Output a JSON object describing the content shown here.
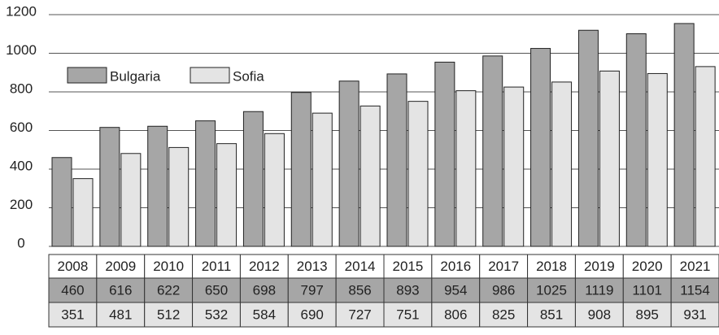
{
  "chart_data": {
    "type": "bar",
    "categories": [
      "2008",
      "2009",
      "2010",
      "2011",
      "2012",
      "2013",
      "2014",
      "2015",
      "2016",
      "2017",
      "2018",
      "2019",
      "2020",
      "2021"
    ],
    "series": [
      {
        "name": "Bulgaria",
        "color": "#a6a6a6",
        "values": [
          460,
          616,
          622,
          650,
          698,
          797,
          856,
          893,
          954,
          986,
          1025,
          1119,
          1101,
          1154
        ]
      },
      {
        "name": "Sofia",
        "color": "#e4e4e4",
        "values": [
          351,
          481,
          512,
          532,
          584,
          690,
          727,
          751,
          806,
          825,
          851,
          908,
          895,
          931
        ]
      }
    ],
    "ylim": [
      0,
      1200
    ],
    "yticks": [
      0,
      200,
      400,
      600,
      800,
      1000,
      1200
    ],
    "grid": true,
    "legend": "top-left"
  }
}
